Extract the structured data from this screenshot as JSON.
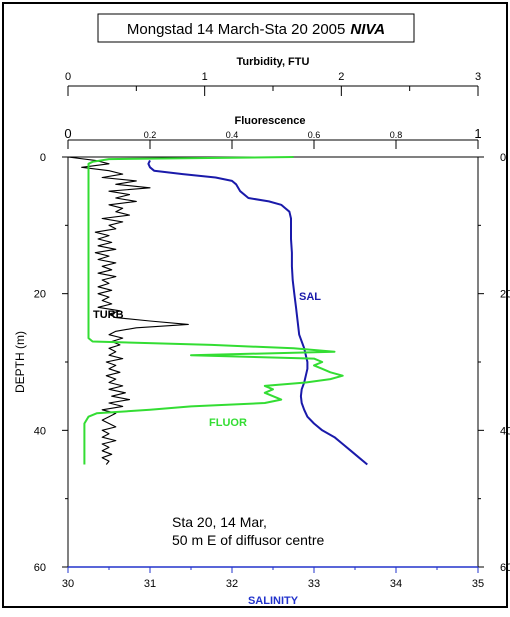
{
  "chart_data": {
    "type": "line",
    "title": {
      "main": "Mongstad 14 March-Sta 20  2005",
      "brand": "NIVA"
    },
    "axes": {
      "depth": {
        "label": "DEPTH  (m)",
        "range": [
          0,
          60
        ],
        "inverted": true,
        "ticks": [
          0,
          20,
          40,
          60
        ],
        "right_ticks": [
          0,
          20,
          40,
          60
        ]
      },
      "salinity": {
        "label": "SALINITY",
        "range": [
          30,
          35
        ],
        "ticks": [
          30,
          31,
          32,
          33,
          34,
          35
        ]
      },
      "turbidity": {
        "label": "Turbidity, FTU",
        "range": [
          0,
          3
        ],
        "ticks": [
          0,
          1,
          2,
          3
        ]
      },
      "fluorescence": {
        "label": "Fluorescence",
        "range": [
          0,
          1
        ],
        "ticks": [
          0,
          0.2,
          0.4,
          0.6,
          0.8,
          1
        ],
        "tick_labels": [
          "0",
          "0.2",
          "0.4",
          "0.6",
          "0.8",
          "1"
        ]
      }
    },
    "series": [
      {
        "name": "SAL",
        "axis": "salinity",
        "color": "#1a1aaa",
        "points": [
          [
            0.5,
            31.0
          ],
          [
            1.0,
            30.98
          ],
          [
            1.5,
            31.0
          ],
          [
            2.0,
            31.05
          ],
          [
            2.5,
            31.4
          ],
          [
            3.0,
            31.8
          ],
          [
            3.5,
            32.0
          ],
          [
            4.0,
            32.05
          ],
          [
            5.0,
            32.1
          ],
          [
            6.0,
            32.2
          ],
          [
            6.5,
            32.45
          ],
          [
            7.0,
            32.6
          ],
          [
            7.5,
            32.65
          ],
          [
            8.0,
            32.7
          ],
          [
            9.0,
            32.72
          ],
          [
            10.0,
            32.72
          ],
          [
            12.0,
            32.72
          ],
          [
            14.0,
            32.73
          ],
          [
            16.0,
            32.73
          ],
          [
            18.0,
            32.74
          ],
          [
            20.0,
            32.76
          ],
          [
            22.0,
            32.78
          ],
          [
            24.0,
            32.8
          ],
          [
            26.0,
            32.82
          ],
          [
            27.0,
            32.85
          ],
          [
            28.0,
            32.88
          ],
          [
            29.0,
            32.9
          ],
          [
            30.0,
            32.92
          ],
          [
            31.0,
            32.92
          ],
          [
            32.0,
            32.9
          ],
          [
            33.0,
            32.88
          ],
          [
            34.0,
            32.85
          ],
          [
            35.0,
            32.84
          ],
          [
            36.0,
            32.85
          ],
          [
            37.0,
            32.88
          ],
          [
            38.0,
            32.92
          ],
          [
            39.0,
            33.0
          ],
          [
            40.0,
            33.1
          ],
          [
            41.0,
            33.25
          ],
          [
            42.0,
            33.35
          ],
          [
            43.0,
            33.45
          ],
          [
            44.0,
            33.55
          ],
          [
            45.0,
            33.65
          ]
        ]
      },
      {
        "name": "TURB",
        "axis": "turbidity",
        "color": "#000000",
        "points": [
          [
            0,
            0
          ],
          [
            0.5,
            0.2
          ],
          [
            1.0,
            0.3
          ],
          [
            1.5,
            0.1
          ],
          [
            2.0,
            0.3
          ],
          [
            2.5,
            0.4
          ],
          [
            3.0,
            0.25
          ],
          [
            3.5,
            0.5
          ],
          [
            4.0,
            0.35
          ],
          [
            4.5,
            0.6
          ],
          [
            5.0,
            0.3
          ],
          [
            5.5,
            0.45
          ],
          [
            6.0,
            0.35
          ],
          [
            6.5,
            0.5
          ],
          [
            7.0,
            0.3
          ],
          [
            7.5,
            0.4
          ],
          [
            8.0,
            0.35
          ],
          [
            8.5,
            0.45
          ],
          [
            9.0,
            0.25
          ],
          [
            9.5,
            0.4
          ],
          [
            10.0,
            0.3
          ],
          [
            10.5,
            0.35
          ],
          [
            11.0,
            0.2
          ],
          [
            11.5,
            0.3
          ],
          [
            12.0,
            0.22
          ],
          [
            12.5,
            0.32
          ],
          [
            13.0,
            0.22
          ],
          [
            13.5,
            0.35
          ],
          [
            14.0,
            0.2
          ],
          [
            14.5,
            0.3
          ],
          [
            15.0,
            0.22
          ],
          [
            15.5,
            0.35
          ],
          [
            16.0,
            0.25
          ],
          [
            16.5,
            0.32
          ],
          [
            17.0,
            0.22
          ],
          [
            17.5,
            0.35
          ],
          [
            18.0,
            0.25
          ],
          [
            18.5,
            0.3
          ],
          [
            19.0,
            0.22
          ],
          [
            19.5,
            0.32
          ],
          [
            20.0,
            0.22
          ],
          [
            20.5,
            0.3
          ],
          [
            21.0,
            0.25
          ],
          [
            21.5,
            0.32
          ],
          [
            22.0,
            0.22
          ],
          [
            22.5,
            0.38
          ],
          [
            23.0,
            0.3
          ],
          [
            23.5,
            0.35
          ],
          [
            24.0,
            0.6
          ],
          [
            24.5,
            0.88
          ],
          [
            25.0,
            0.5
          ],
          [
            25.5,
            0.35
          ],
          [
            26.0,
            0.3
          ],
          [
            26.5,
            0.4
          ],
          [
            27.0,
            0.32
          ],
          [
            27.5,
            0.38
          ],
          [
            28.0,
            0.3
          ],
          [
            28.5,
            0.35
          ],
          [
            29.0,
            0.3
          ],
          [
            29.5,
            0.4
          ],
          [
            30.0,
            0.28
          ],
          [
            30.5,
            0.35
          ],
          [
            31.0,
            0.3
          ],
          [
            31.5,
            0.38
          ],
          [
            32.0,
            0.28
          ],
          [
            32.5,
            0.35
          ],
          [
            33.0,
            0.3
          ],
          [
            33.5,
            0.4
          ],
          [
            34.0,
            0.3
          ],
          [
            34.5,
            0.42
          ],
          [
            35.0,
            0.32
          ],
          [
            35.5,
            0.45
          ],
          [
            36.0,
            0.3
          ],
          [
            36.5,
            0.4
          ],
          [
            37.0,
            0.25
          ],
          [
            37.5,
            0.35
          ],
          [
            38.0,
            0.3
          ],
          [
            38.5,
            0.25
          ],
          [
            39.0,
            0.3
          ],
          [
            39.5,
            0.35
          ],
          [
            40.0,
            0.25
          ],
          [
            40.5,
            0.3
          ],
          [
            41.0,
            0.25
          ],
          [
            41.5,
            0.35
          ],
          [
            42.0,
            0.25
          ],
          [
            42.5,
            0.3
          ],
          [
            43.0,
            0.25
          ],
          [
            43.5,
            0.32
          ],
          [
            44.0,
            0.25
          ],
          [
            44.5,
            0.3
          ],
          [
            45.0,
            0.28
          ]
        ]
      },
      {
        "name": "FLUOR",
        "axis": "fluorescence",
        "color": "#33dd33",
        "points": [
          [
            0,
            0.55
          ],
          [
            0.3,
            0.1
          ],
          [
            0.7,
            0.06
          ],
          [
            1.0,
            0.05
          ],
          [
            2.0,
            0.05
          ],
          [
            5.0,
            0.05
          ],
          [
            10.0,
            0.05
          ],
          [
            15.0,
            0.05
          ],
          [
            20.0,
            0.05
          ],
          [
            25.0,
            0.05
          ],
          [
            26.5,
            0.05
          ],
          [
            27.0,
            0.06
          ],
          [
            27.5,
            0.35
          ],
          [
            28.0,
            0.55
          ],
          [
            28.5,
            0.65
          ],
          [
            29.0,
            0.3
          ],
          [
            29.5,
            0.6
          ],
          [
            30.0,
            0.62
          ],
          [
            30.5,
            0.6
          ],
          [
            31.0,
            0.62
          ],
          [
            31.5,
            0.64
          ],
          [
            32.0,
            0.67
          ],
          [
            32.5,
            0.64
          ],
          [
            33.0,
            0.58
          ],
          [
            33.5,
            0.48
          ],
          [
            34.0,
            0.5
          ],
          [
            34.5,
            0.48
          ],
          [
            35.0,
            0.5
          ],
          [
            35.5,
            0.52
          ],
          [
            36.0,
            0.48
          ],
          [
            36.5,
            0.3
          ],
          [
            37.0,
            0.2
          ],
          [
            37.5,
            0.07
          ],
          [
            38.0,
            0.05
          ],
          [
            39.0,
            0.04
          ],
          [
            40.0,
            0.04
          ],
          [
            42.0,
            0.04
          ],
          [
            44.0,
            0.04
          ],
          [
            45.0,
            0.04
          ]
        ]
      }
    ],
    "annotations": {
      "station_line1": "Sta 20, 14 Mar,",
      "station_line2": "50 m E of diffusor centre"
    },
    "grid": false
  }
}
